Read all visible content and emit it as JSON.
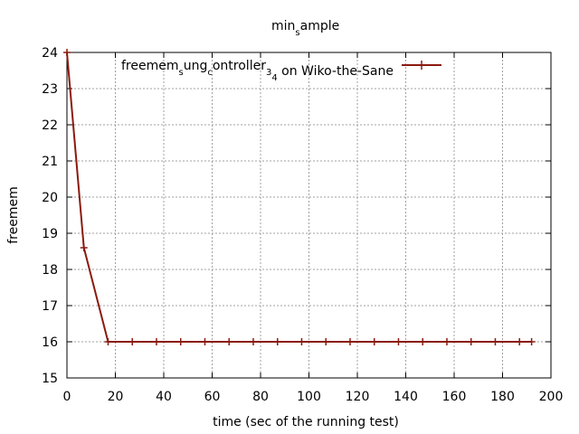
{
  "chart_data": {
    "type": "line",
    "title": "min_sample",
    "xlabel": "time (sec of the running test)",
    "ylabel": "freemem",
    "xlim": [
      0,
      200
    ],
    "ylim": [
      15,
      24
    ],
    "x_ticks": [
      0,
      20,
      40,
      60,
      80,
      100,
      120,
      140,
      160,
      180,
      200
    ],
    "y_ticks": [
      15,
      16,
      17,
      18,
      19,
      20,
      21,
      22,
      23,
      24
    ],
    "grid": true,
    "legend_position": "top-right",
    "series": [
      {
        "name": "freemem_sung_controller_3_4 on Wiko-the-Sane",
        "color": "#8b1a0e",
        "x": [
          0,
          7,
          17,
          27,
          37,
          47,
          57,
          67,
          77,
          87,
          97,
          107,
          117,
          127,
          137,
          147,
          157,
          167,
          177,
          187,
          192
        ],
        "y": [
          24,
          18.6,
          16,
          16,
          16,
          16,
          16,
          16,
          16,
          16,
          16,
          16,
          16,
          16,
          16,
          16,
          16,
          16,
          16,
          16,
          16
        ]
      }
    ]
  }
}
